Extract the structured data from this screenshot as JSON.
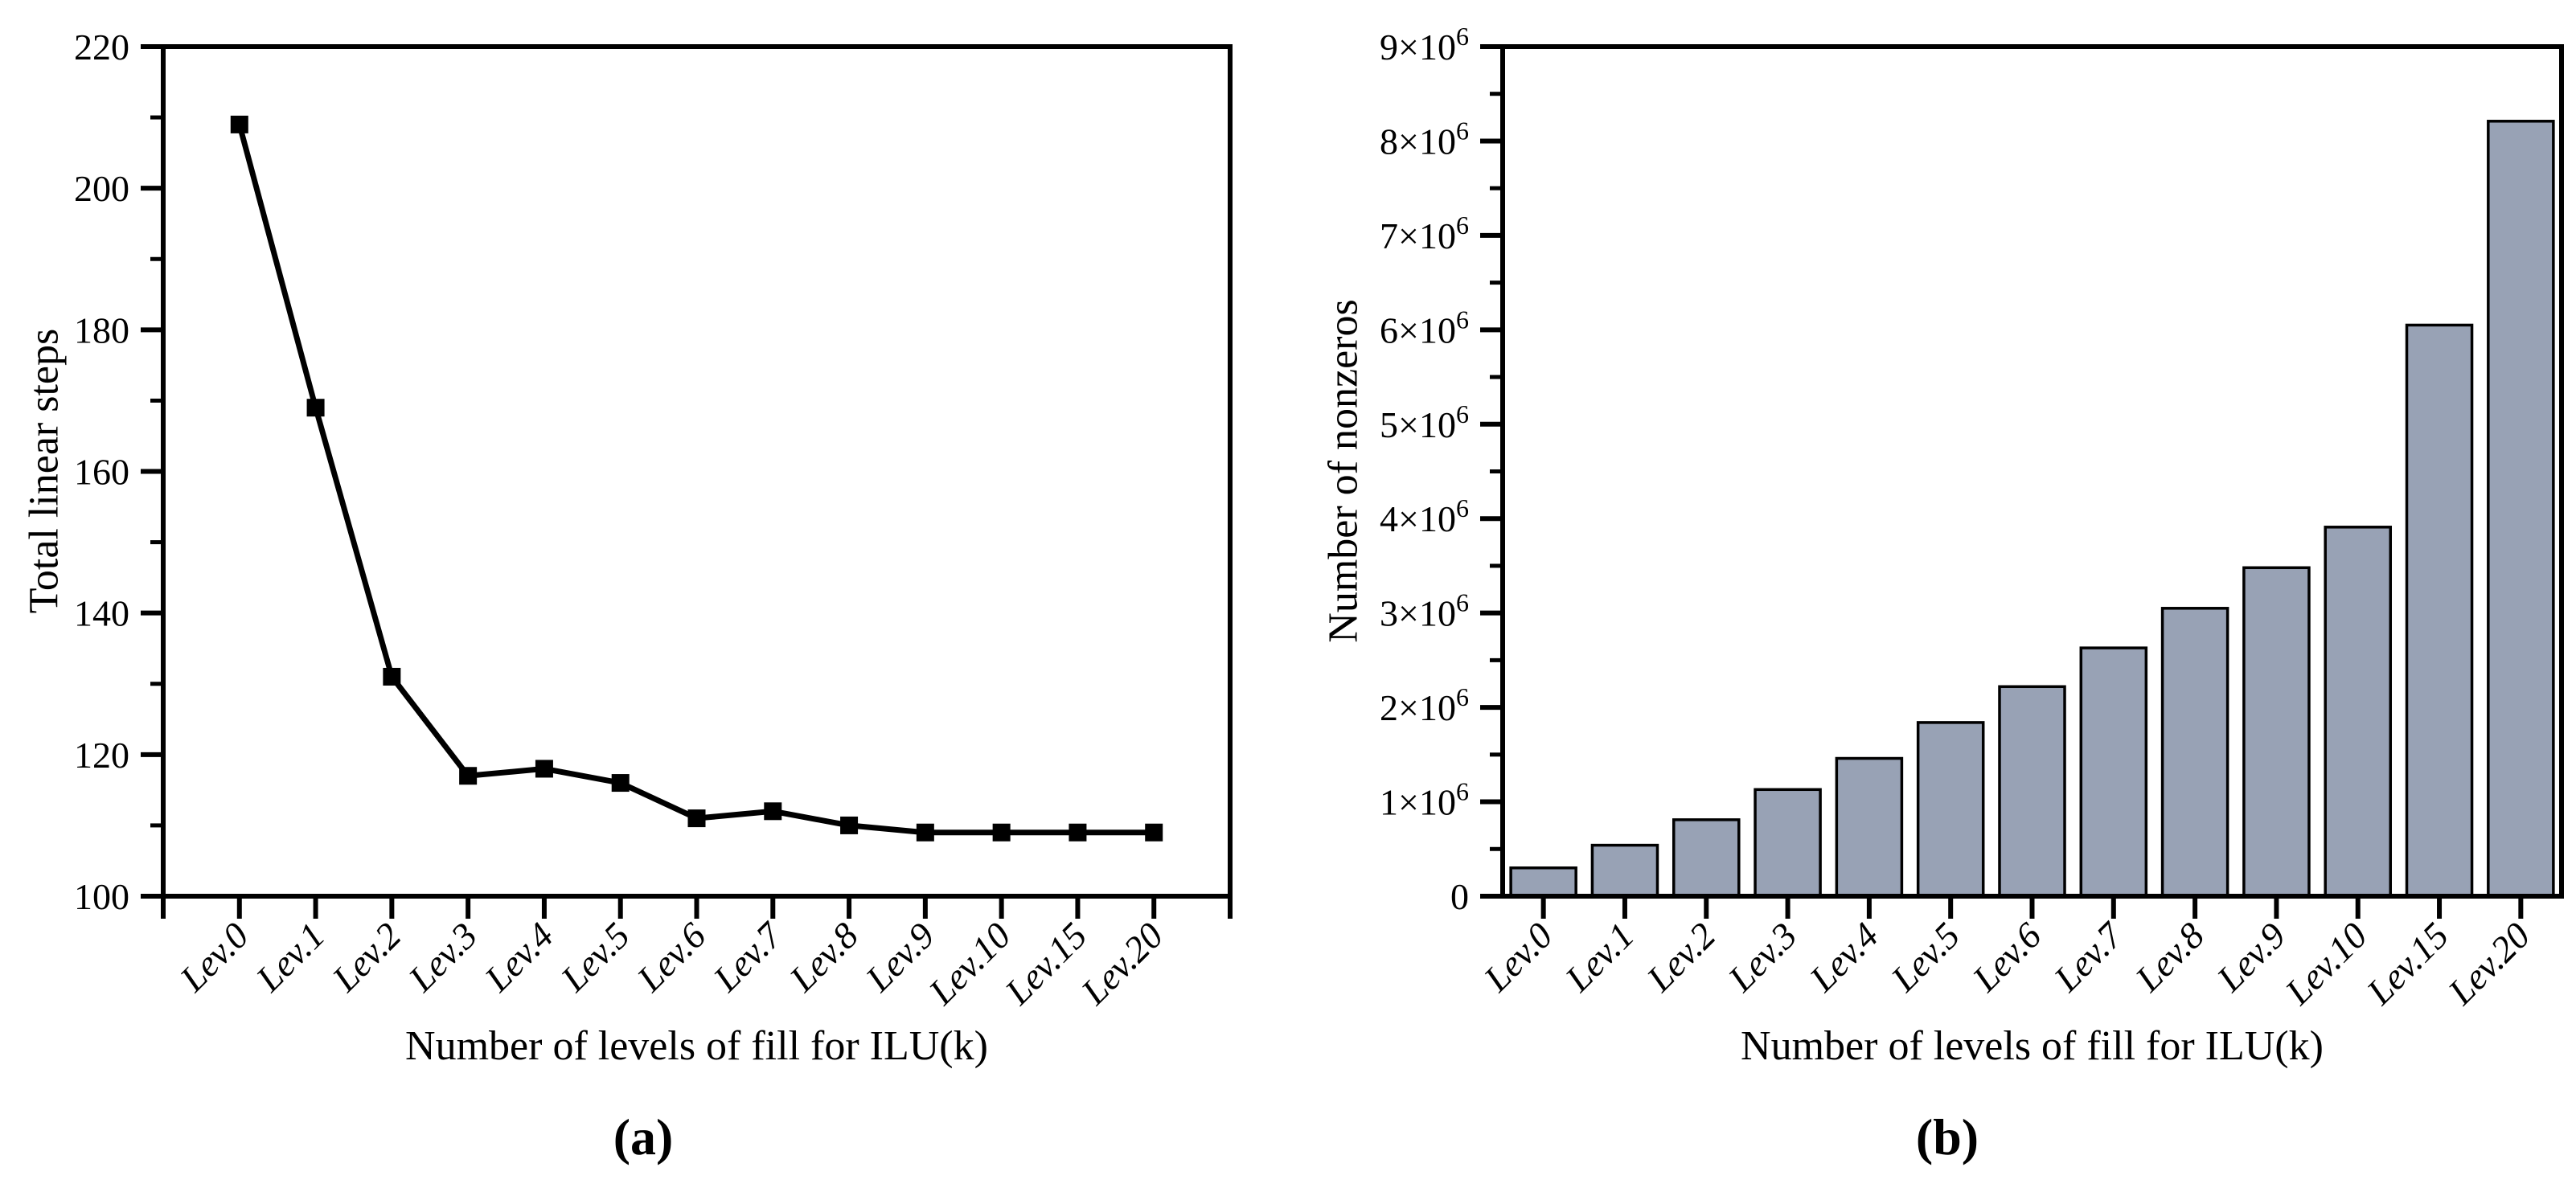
{
  "figure": {
    "panels": [
      {
        "panel_label": "(a)",
        "y_axis_title": "Total linear steps",
        "x_axis_title": "Number of levels of fill for ILU(k)"
      },
      {
        "panel_label": "(b)",
        "y_axis_title": "Number of nonzeros",
        "x_axis_title": "Number of levels of fill for ILU(k)"
      }
    ]
  },
  "chart_data": [
    {
      "type": "line",
      "title": "",
      "categories": [
        "Lev.0",
        "Lev.1",
        "Lev.2",
        "Lev.3",
        "Lev.4",
        "Lev.5",
        "Lev.6",
        "Lev.7",
        "Lev.8",
        "Lev.9",
        "Lev.10",
        "Lev.15",
        "Lev.20"
      ],
      "values": [
        209,
        169,
        131,
        117,
        118,
        116,
        111,
        112,
        110,
        109,
        109,
        109,
        109
      ],
      "xlabel": "Number of levels of fill for ILU(k)",
      "ylabel": "Total linear steps",
      "ylim": [
        100,
        220
      ],
      "ytick_step": 20,
      "yminor_step": 10,
      "ytick_labels": [
        "100",
        "120",
        "140",
        "160",
        "180",
        "200",
        "220"
      ],
      "grid": "off",
      "legend": "none",
      "marker": "filled-square",
      "colors": {
        "line": "#000000",
        "marker": "#000000"
      }
    },
    {
      "type": "bar",
      "title": "",
      "categories": [
        "Lev.0",
        "Lev.1",
        "Lev.2",
        "Lev.3",
        "Lev.4",
        "Lev.5",
        "Lev.6",
        "Lev.7",
        "Lev.8",
        "Lev.9",
        "Lev.10",
        "Lev.15",
        "Lev.20"
      ],
      "values": [
        300000,
        540000,
        810000,
        1130000,
        1460000,
        1840000,
        2220000,
        2630000,
        3050000,
        3480000,
        3910000,
        6050000,
        8210000
      ],
      "xlabel": "Number of levels of fill for ILU(k)",
      "ylabel": "Number of nonzeros",
      "ylim": [
        0,
        9000000
      ],
      "ytick_step": 1000000,
      "yminor_step": 500000,
      "ytick_labels": [
        "0",
        "1×10^6",
        "2×10^6",
        "3×10^6",
        "4×10^6",
        "5×10^6",
        "6×10^6",
        "7×10^6",
        "8×10^6",
        "9×10^6"
      ],
      "grid": "off",
      "legend": "none",
      "colors": {
        "bar_fill": "#98a2b5",
        "bar_edge": "#000000"
      }
    }
  ]
}
